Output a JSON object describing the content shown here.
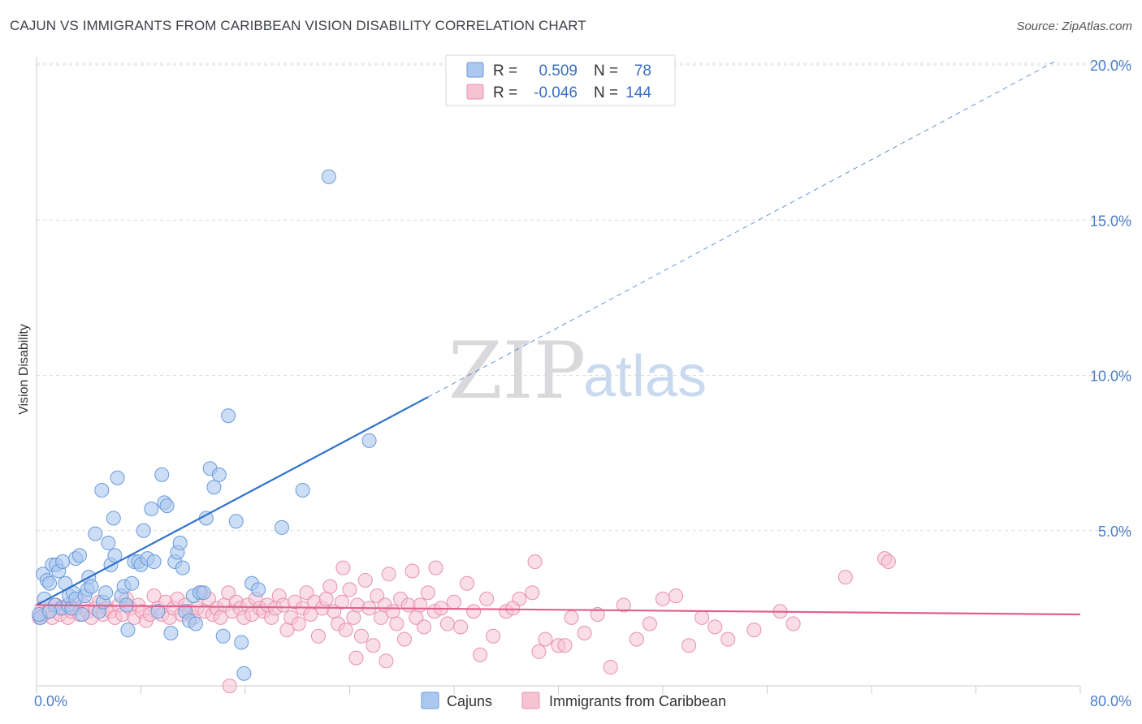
{
  "title": "CAJUN VS IMMIGRANTS FROM CARIBBEAN VISION DISABILITY CORRELATION CHART",
  "source": "Source: ZipAtlas.com",
  "watermark": {
    "zip": "ZIP",
    "atlas": "atlas"
  },
  "colors": {
    "blue_fill": "#aac8f0",
    "blue_stroke": "#6a9ad8",
    "blue_line": "#2f72cc",
    "pink_fill": "#f6c3d3",
    "pink_stroke": "#e890ae",
    "pink_line": "#e0608c",
    "grid": "#dcdcdc",
    "tick_label": "#4a7ecb"
  },
  "legend": {
    "rows": [
      {
        "r_label": "R =",
        "r_value": "0.509",
        "n_label": "N =",
        "n_value": "78"
      },
      {
        "r_label": "R =",
        "r_value": "-0.046",
        "n_label": "N =",
        "n_value": "144"
      }
    ]
  },
  "chart_data": {
    "type": "scatter",
    "title": "CAJUN VS IMMIGRANTS FROM CARIBBEAN VISION DISABILITY CORRELATION CHART",
    "xlabel": "",
    "ylabel": "Vision Disability",
    "xlim": [
      0,
      80
    ],
    "ylim": [
      0,
      20.5
    ],
    "x_tick_labels": [
      "0.0%",
      "80.0%"
    ],
    "y_ticks": [
      5,
      10,
      15,
      20
    ],
    "y_tick_labels": [
      "5.0%",
      "10.0%",
      "15.0%",
      "20.0%"
    ],
    "grid": true,
    "series": [
      {
        "name": "Cajuns",
        "r": 0.509,
        "n": 78,
        "trend": {
          "x0": 0,
          "y0": 2.6,
          "x1": 30,
          "y1": 9.3,
          "dash_to_x": 78,
          "dash_to_y": 20.1
        },
        "points": [
          [
            0.3,
            2.2
          ],
          [
            0.5,
            3.6
          ],
          [
            0.6,
            2.8
          ],
          [
            0.8,
            3.4
          ],
          [
            1.0,
            3.3
          ],
          [
            1.2,
            3.9
          ],
          [
            1.4,
            2.6
          ],
          [
            1.5,
            3.9
          ],
          [
            1.7,
            3.7
          ],
          [
            1.9,
            2.5
          ],
          [
            2.0,
            4.0
          ],
          [
            2.2,
            3.3
          ],
          [
            2.4,
            2.6
          ],
          [
            2.5,
            2.9
          ],
          [
            2.7,
            2.5
          ],
          [
            2.8,
            3.0
          ],
          [
            3.0,
            4.1
          ],
          [
            3.0,
            2.8
          ],
          [
            3.3,
            4.2
          ],
          [
            3.5,
            2.3
          ],
          [
            3.7,
            2.9
          ],
          [
            3.9,
            3.1
          ],
          [
            4.0,
            3.5
          ],
          [
            4.2,
            3.2
          ],
          [
            4.5,
            4.9
          ],
          [
            4.8,
            2.4
          ],
          [
            5.0,
            6.3
          ],
          [
            5.1,
            2.7
          ],
          [
            5.3,
            3.0
          ],
          [
            5.5,
            4.6
          ],
          [
            5.7,
            3.9
          ],
          [
            5.9,
            5.4
          ],
          [
            6.0,
            4.2
          ],
          [
            6.2,
            6.7
          ],
          [
            6.5,
            2.9
          ],
          [
            6.7,
            3.2
          ],
          [
            6.9,
            2.6
          ],
          [
            7.0,
            1.8
          ],
          [
            7.3,
            3.3
          ],
          [
            7.5,
            4.0
          ],
          [
            7.8,
            4.0
          ],
          [
            8.0,
            3.9
          ],
          [
            8.2,
            5.0
          ],
          [
            8.5,
            4.1
          ],
          [
            8.8,
            5.7
          ],
          [
            9.0,
            4.0
          ],
          [
            9.3,
            2.4
          ],
          [
            9.6,
            6.8
          ],
          [
            9.8,
            5.9
          ],
          [
            10.0,
            5.8
          ],
          [
            10.3,
            1.7
          ],
          [
            10.6,
            4.0
          ],
          [
            10.8,
            4.3
          ],
          [
            11.0,
            4.6
          ],
          [
            11.2,
            3.8
          ],
          [
            11.4,
            2.4
          ],
          [
            11.7,
            2.1
          ],
          [
            12.0,
            2.9
          ],
          [
            12.2,
            2.0
          ],
          [
            12.5,
            3.0
          ],
          [
            12.8,
            3.0
          ],
          [
            13.0,
            5.4
          ],
          [
            13.3,
            7.0
          ],
          [
            13.6,
            6.4
          ],
          [
            14.0,
            6.8
          ],
          [
            14.3,
            1.6
          ],
          [
            14.7,
            8.7
          ],
          [
            15.3,
            5.3
          ],
          [
            15.7,
            1.4
          ],
          [
            15.9,
            0.4
          ],
          [
            16.5,
            3.3
          ],
          [
            17.0,
            3.1
          ],
          [
            18.8,
            5.1
          ],
          [
            20.4,
            6.3
          ],
          [
            22.4,
            16.4
          ],
          [
            25.5,
            7.9
          ],
          [
            0.2,
            2.3
          ],
          [
            1.0,
            2.4
          ]
        ]
      },
      {
        "name": "Immigrants from Caribbean",
        "r": -0.046,
        "n": 144,
        "trend": {
          "x0": 0,
          "y0": 2.6,
          "x1": 80,
          "y1": 2.3
        },
        "points": [
          [
            0.2,
            2.2
          ],
          [
            0.4,
            2.5
          ],
          [
            0.6,
            2.3
          ],
          [
            0.9,
            2.4
          ],
          [
            1.2,
            2.2
          ],
          [
            1.5,
            2.6
          ],
          [
            1.8,
            2.3
          ],
          [
            2.1,
            2.5
          ],
          [
            2.4,
            2.2
          ],
          [
            2.7,
            2.4
          ],
          [
            3.0,
            2.5
          ],
          [
            3.3,
            2.3
          ],
          [
            3.6,
            2.6
          ],
          [
            3.9,
            2.4
          ],
          [
            4.2,
            2.2
          ],
          [
            4.5,
            2.5
          ],
          [
            4.8,
            2.7
          ],
          [
            5.1,
            2.3
          ],
          [
            5.4,
            2.5
          ],
          [
            5.7,
            2.4
          ],
          [
            6.0,
            2.2
          ],
          [
            6.3,
            2.6
          ],
          [
            6.6,
            2.3
          ],
          [
            6.9,
            2.8
          ],
          [
            7.2,
            2.5
          ],
          [
            7.5,
            2.2
          ],
          [
            7.8,
            2.6
          ],
          [
            8.1,
            2.4
          ],
          [
            8.4,
            2.1
          ],
          [
            8.7,
            2.3
          ],
          [
            9.0,
            2.9
          ],
          [
            9.3,
            2.5
          ],
          [
            9.6,
            2.3
          ],
          [
            9.9,
            2.7
          ],
          [
            10.2,
            2.2
          ],
          [
            10.5,
            2.5
          ],
          [
            10.8,
            2.8
          ],
          [
            11.1,
            2.3
          ],
          [
            11.4,
            2.6
          ],
          [
            11.7,
            2.4
          ],
          [
            12.0,
            2.2
          ],
          [
            12.3,
            2.5
          ],
          [
            12.6,
            3.0
          ],
          [
            12.9,
            2.4
          ],
          [
            13.2,
            2.8
          ],
          [
            13.5,
            2.3
          ],
          [
            13.8,
            2.5
          ],
          [
            14.1,
            2.2
          ],
          [
            14.4,
            2.6
          ],
          [
            14.7,
            3.0
          ],
          [
            15.0,
            2.4
          ],
          [
            15.3,
            2.7
          ],
          [
            15.6,
            2.5
          ],
          [
            15.9,
            2.2
          ],
          [
            16.2,
            2.6
          ],
          [
            16.5,
            2.3
          ],
          [
            16.8,
            2.8
          ],
          [
            17.1,
            2.5
          ],
          [
            17.4,
            2.4
          ],
          [
            17.7,
            2.6
          ],
          [
            18.0,
            2.2
          ],
          [
            18.3,
            2.5
          ],
          [
            18.6,
            2.9
          ],
          [
            18.9,
            2.6
          ],
          [
            19.2,
            1.8
          ],
          [
            19.5,
            2.2
          ],
          [
            19.8,
            2.7
          ],
          [
            20.1,
            2.0
          ],
          [
            20.4,
            2.5
          ],
          [
            20.7,
            3.0
          ],
          [
            21.0,
            2.3
          ],
          [
            21.3,
            2.7
          ],
          [
            21.6,
            1.6
          ],
          [
            21.9,
            2.5
          ],
          [
            22.2,
            2.8
          ],
          [
            22.5,
            3.2
          ],
          [
            22.8,
            2.4
          ],
          [
            23.1,
            2.0
          ],
          [
            23.4,
            2.7
          ],
          [
            23.7,
            1.8
          ],
          [
            24.0,
            3.1
          ],
          [
            24.3,
            2.2
          ],
          [
            24.6,
            2.6
          ],
          [
            24.9,
            1.6
          ],
          [
            25.2,
            3.4
          ],
          [
            25.5,
            2.5
          ],
          [
            25.8,
            1.3
          ],
          [
            26.1,
            2.9
          ],
          [
            26.4,
            2.2
          ],
          [
            26.7,
            2.6
          ],
          [
            27.0,
            3.6
          ],
          [
            27.3,
            2.4
          ],
          [
            27.6,
            2.0
          ],
          [
            27.9,
            2.8
          ],
          [
            28.2,
            1.5
          ],
          [
            28.5,
            2.6
          ],
          [
            28.8,
            3.7
          ],
          [
            29.1,
            2.2
          ],
          [
            29.4,
            2.6
          ],
          [
            29.7,
            1.9
          ],
          [
            30.0,
            3.0
          ],
          [
            30.5,
            2.4
          ],
          [
            31.0,
            2.5
          ],
          [
            31.5,
            2.0
          ],
          [
            32.0,
            2.7
          ],
          [
            32.5,
            1.9
          ],
          [
            33.0,
            3.3
          ],
          [
            33.5,
            2.4
          ],
          [
            34.0,
            1.0
          ],
          [
            34.5,
            2.8
          ],
          [
            35.0,
            1.6
          ],
          [
            36.0,
            2.4
          ],
          [
            37.0,
            2.8
          ],
          [
            38.0,
            3.0
          ],
          [
            38.5,
            1.1
          ],
          [
            39.0,
            1.5
          ],
          [
            40.0,
            1.3
          ],
          [
            41.0,
            2.2
          ],
          [
            42.0,
            1.7
          ],
          [
            43.0,
            2.3
          ],
          [
            44.0,
            0.6
          ],
          [
            45.0,
            2.6
          ],
          [
            46.0,
            1.5
          ],
          [
            47.0,
            2.0
          ],
          [
            48.0,
            2.8
          ],
          [
            49.0,
            2.9
          ],
          [
            50.0,
            1.3
          ],
          [
            51.0,
            2.2
          ],
          [
            52.0,
            1.9
          ],
          [
            53.0,
            1.5
          ],
          [
            55.0,
            1.8
          ],
          [
            57.0,
            2.4
          ],
          [
            58.0,
            2.0
          ],
          [
            62.0,
            3.5
          ],
          [
            65.0,
            4.1
          ],
          [
            65.3,
            4.0
          ],
          [
            24.5,
            0.9
          ],
          [
            26.8,
            0.8
          ],
          [
            30.6,
            3.8
          ],
          [
            36.5,
            2.5
          ],
          [
            38.2,
            4.0
          ],
          [
            40.5,
            1.3
          ],
          [
            23.5,
            3.8
          ],
          [
            14.8,
            0.0
          ]
        ]
      }
    ]
  },
  "bottom_legend": [
    {
      "label": "Cajuns"
    },
    {
      "label": "Immigrants from Caribbean"
    }
  ]
}
